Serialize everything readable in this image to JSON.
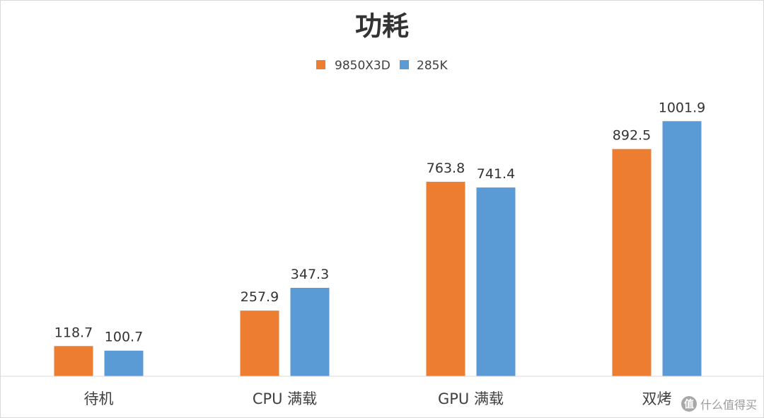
{
  "chart_data": {
    "type": "bar",
    "title": "功耗",
    "categories": [
      "待机",
      "CPU 满载",
      "GPU 满载",
      "双烤"
    ],
    "series": [
      {
        "name": "9850X3D",
        "color": "#ED7D31",
        "values": [
          118.7,
          257.9,
          763.8,
          892.5
        ]
      },
      {
        "name": "285K",
        "color": "#5B9BD5",
        "values": [
          100.7,
          347.3,
          741.4,
          1001.9
        ]
      }
    ],
    "value_labels": [
      [
        "118.7",
        "257.9",
        "763.8",
        "892.5"
      ],
      [
        "100.7",
        "347.3",
        "741.4",
        "1001.9"
      ]
    ],
    "xlabel": "",
    "ylabel": "",
    "ylim": [
      0,
      1200
    ],
    "grid": false,
    "legend_position": "top-center"
  },
  "watermark": {
    "badge": "值",
    "text": "什么值得买"
  }
}
